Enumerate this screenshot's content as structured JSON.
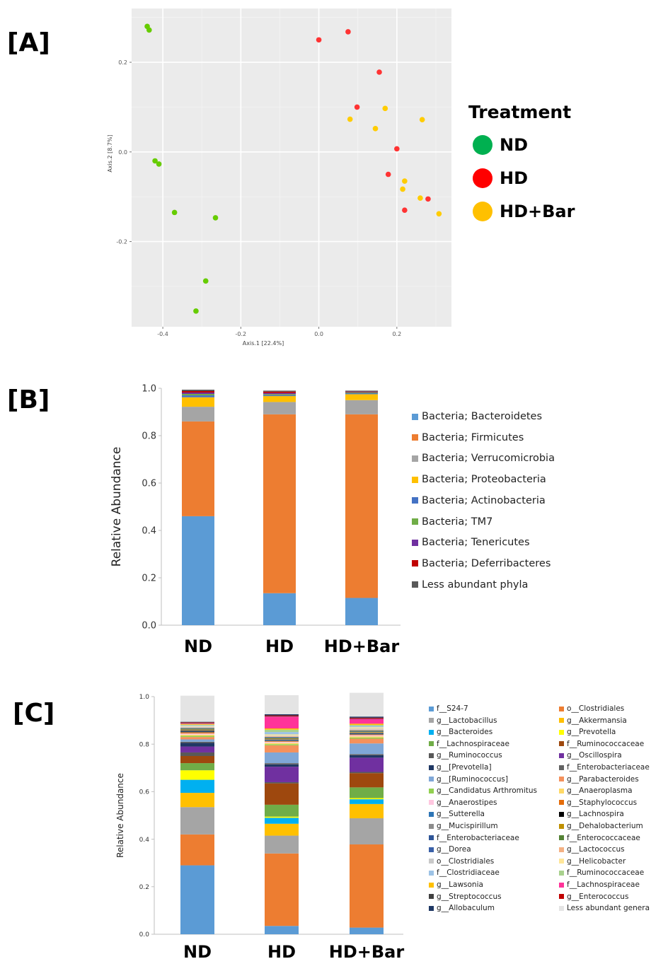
{
  "panel_labels": {
    "a": "[A]",
    "b": "[B]",
    "c": "[C]"
  },
  "chart_data": [
    {
      "type": "scatter",
      "panel": "[A]",
      "xlabel": "Axis.1   [22.4%]",
      "ylabel": "Axis.2   [8.7%]",
      "xlim": [
        -0.48,
        0.34
      ],
      "ylim": [
        -0.39,
        0.32
      ],
      "xticks": [
        -0.4,
        -0.2,
        0.0,
        0.2
      ],
      "yticks": [
        -0.2,
        0.0,
        0.2
      ],
      "xtick_labels": [
        "-0.4",
        "-0.2",
        "0.0",
        "0.2"
      ],
      "ytick_labels": [
        "-0.2",
        "0.0",
        "0.2"
      ],
      "legend_title": "Treatment",
      "legend_position": "right",
      "grid": true,
      "series": [
        {
          "name": "ND",
          "color": "#00b050",
          "point_color": "#66cc00",
          "x": [
            -0.44,
            -0.435,
            -0.42,
            -0.41,
            -0.37,
            -0.265,
            -0.29,
            -0.315
          ],
          "y": [
            0.28,
            0.272,
            -0.02,
            -0.027,
            -0.135,
            -0.147,
            -0.288,
            -0.355
          ]
        },
        {
          "name": "HD",
          "color": "#ff0000",
          "point_color": "#ff3333",
          "x": [
            0.0,
            0.075,
            0.155,
            0.098,
            0.2,
            0.178,
            0.28,
            0.22
          ],
          "y": [
            0.25,
            0.268,
            0.178,
            0.1,
            0.007,
            -0.05,
            -0.105,
            -0.13
          ]
        },
        {
          "name": "HD+Bar",
          "color": "#ffc000",
          "point_color": "#ffcc00",
          "x": [
            0.08,
            0.17,
            0.265,
            0.145,
            0.22,
            0.215,
            0.26,
            0.308
          ],
          "y": [
            0.073,
            0.097,
            0.072,
            0.052,
            -0.065,
            -0.083,
            -0.103,
            -0.138
          ]
        }
      ]
    },
    {
      "type": "bar",
      "stacked": true,
      "panel": "[B]",
      "categories": [
        "ND",
        "HD",
        "HD+Bar"
      ],
      "ylabel": "Relative Abundance",
      "ylim": [
        0,
        1.0
      ],
      "yticks": [
        0.0,
        0.2,
        0.4,
        0.6,
        0.8,
        1.0
      ],
      "ytick_labels": [
        "0.0",
        "0.2",
        "0.4",
        "0.6",
        "0.8",
        "1.0"
      ],
      "legend_position": "right",
      "series": [
        {
          "name": "Bacteria; Bacteroidetes",
          "color": "#5b9bd5",
          "values": [
            0.46,
            0.135,
            0.115
          ]
        },
        {
          "name": "Bacteria; Firmicutes",
          "color": "#ed7d31",
          "values": [
            0.4,
            0.755,
            0.775
          ]
        },
        {
          "name": "Bacteria; Verrucomicrobia",
          "color": "#a5a5a5",
          "values": [
            0.062,
            0.052,
            0.06
          ]
        },
        {
          "name": "Bacteria; Proteobacteria",
          "color": "#ffc000",
          "values": [
            0.04,
            0.025,
            0.025
          ]
        },
        {
          "name": "Bacteria; Actinobacteria",
          "color": "#4472c4",
          "values": [
            0.008,
            0.004,
            0.004
          ]
        },
        {
          "name": "Bacteria; TM7",
          "color": "#70ad47",
          "values": [
            0.006,
            0.004,
            0.003
          ]
        },
        {
          "name": "Bacteria; Tenericutes",
          "color": "#7030a0",
          "values": [
            0.006,
            0.005,
            0.002
          ]
        },
        {
          "name": "Bacteria; Deferribacteres",
          "color": "#c00000",
          "values": [
            0.006,
            0.006,
            0.002
          ]
        },
        {
          "name": "Less abundant phyla",
          "color": "#595959",
          "values": [
            0.006,
            0.004,
            0.004
          ]
        }
      ]
    },
    {
      "type": "bar",
      "stacked": true,
      "panel": "[C]",
      "categories": [
        "ND",
        "HD",
        "HD+Bar"
      ],
      "ylabel": "Relative Abundance",
      "ylim": [
        0,
        1.0
      ],
      "yticks": [
        0.0,
        0.2,
        0.4,
        0.6,
        0.8,
        1.0
      ],
      "ytick_labels": [
        "0.0",
        "0.2",
        "0.4",
        "0.6",
        "0.8",
        "1.0"
      ],
      "legend_position": "right",
      "series": [
        {
          "name": "f__S24-7",
          "color": "#5b9bd5",
          "values": [
            0.29,
            0.035,
            0.028
          ]
        },
        {
          "name": "o__Clostridiales",
          "color": "#ed7d31",
          "values": [
            0.13,
            0.305,
            0.35
          ]
        },
        {
          "name": "g__Lactobacillus",
          "color": "#a5a5a5",
          "values": [
            0.115,
            0.075,
            0.11
          ]
        },
        {
          "name": "g__Akkermansia",
          "color": "#ffc000",
          "values": [
            0.06,
            0.05,
            0.06
          ]
        },
        {
          "name": "g__Bacteroides",
          "color": "#00b0f0",
          "values": [
            0.055,
            0.025,
            0.02
          ]
        },
        {
          "name": "g__Prevotella",
          "color": "#ffff00",
          "values": [
            0.04,
            0.005,
            0.005
          ]
        },
        {
          "name": "f__Lachnospiraceae",
          "color": "#70ad47",
          "values": [
            0.03,
            0.05,
            0.045
          ]
        },
        {
          "name": "f__Ruminococcaceae",
          "color": "#9e480e",
          "values": [
            0.03,
            0.09,
            0.06
          ]
        },
        {
          "name": "g__Ruminococcus",
          "color": "#595959",
          "values": [
            0.015,
            0.005,
            0.005
          ]
        },
        {
          "name": "g__Oscillospira",
          "color": "#7030a0",
          "values": [
            0.025,
            0.065,
            0.06
          ]
        },
        {
          "name": "g__[Prevotella]",
          "color": "#203864",
          "values": [
            0.015,
            0.01,
            0.01
          ]
        },
        {
          "name": "f__Enterobacteriaceae",
          "color": "#636363",
          "values": [
            0.005,
            0.005,
            0.005
          ]
        },
        {
          "name": "g__[Ruminococcus]",
          "color": "#7fa7d7",
          "values": [
            0.01,
            0.045,
            0.045
          ]
        },
        {
          "name": "g__Parabacteroides",
          "color": "#f4915c",
          "values": [
            0.01,
            0.03,
            0.02
          ]
        },
        {
          "name": "g__Candidatus Arthromitus",
          "color": "#92d050",
          "values": [
            0.005,
            0.005,
            0.005
          ]
        },
        {
          "name": "g__Anaeroplasma",
          "color": "#ffd966",
          "values": [
            0.005,
            0.005,
            0.005
          ]
        },
        {
          "name": "g__Anaerostipes",
          "color": "#ffc7e0",
          "values": [
            0.005,
            0.005,
            0.005
          ]
        },
        {
          "name": "g__Staphylococcus",
          "color": "#e46c0a",
          "values": [
            0.005,
            0.003,
            0.003
          ]
        },
        {
          "name": "g__Sutterella",
          "color": "#2e75b6",
          "values": [
            0.003,
            0.003,
            0.003
          ]
        },
        {
          "name": "g__Lachnospira",
          "color": "#000000",
          "values": [
            0.003,
            0.002,
            0.002
          ]
        },
        {
          "name": "g__Mucispirillum",
          "color": "#8c8c8c",
          "values": [
            0.003,
            0.003,
            0.003
          ]
        },
        {
          "name": "g__Dehalobacterium",
          "color": "#bf9000",
          "values": [
            0.003,
            0.003,
            0.003
          ]
        },
        {
          "name": "f__Enterobacteriaceae",
          "color": "#2f5597",
          "values": [
            0.002,
            0.002,
            0.002
          ]
        },
        {
          "name": "f__Enterococcaceae",
          "color": "#548235",
          "values": [
            0.002,
            0.002,
            0.002
          ]
        },
        {
          "name": "g__Dorea",
          "color": "#3a60a8",
          "values": [
            0.002,
            0.002,
            0.002
          ]
        },
        {
          "name": "g__Lactococcus",
          "color": "#f4b183",
          "values": [
            0.002,
            0.003,
            0.003
          ]
        },
        {
          "name": "o__Clostridiales",
          "color": "#c9c9c9",
          "values": [
            0.003,
            0.003,
            0.005
          ]
        },
        {
          "name": "g__Helicobacter",
          "color": "#ffe699",
          "values": [
            0.003,
            0.005,
            0.005
          ]
        },
        {
          "name": "f__Clostridiaceae",
          "color": "#9dc3e6",
          "values": [
            0.003,
            0.01,
            0.005
          ]
        },
        {
          "name": "f__Ruminococcaceae",
          "color": "#a9d18e",
          "values": [
            0.003,
            0.01,
            0.005
          ]
        },
        {
          "name": "g__Lawsonia",
          "color": "#ffc000",
          "values": [
            0.003,
            0.005,
            0.005
          ]
        },
        {
          "name": "f__Lachnospiraceae",
          "color": "#ff3399",
          "values": [
            0.003,
            0.05,
            0.02
          ]
        },
        {
          "name": "g__Streptococcus",
          "color": "#404040",
          "values": [
            0.002,
            0.002,
            0.002
          ]
        },
        {
          "name": "g__Enterococcus",
          "color": "#c00000",
          "values": [
            0.002,
            0.003,
            0.003
          ]
        },
        {
          "name": "g__Allobaculum",
          "color": "#1f3864",
          "values": [
            0.002,
            0.005,
            0.005
          ]
        },
        {
          "name": "Less abundant genera",
          "color": "#e4e4e4",
          "values": [
            0.11,
            0.08,
            0.1
          ]
        }
      ]
    }
  ]
}
